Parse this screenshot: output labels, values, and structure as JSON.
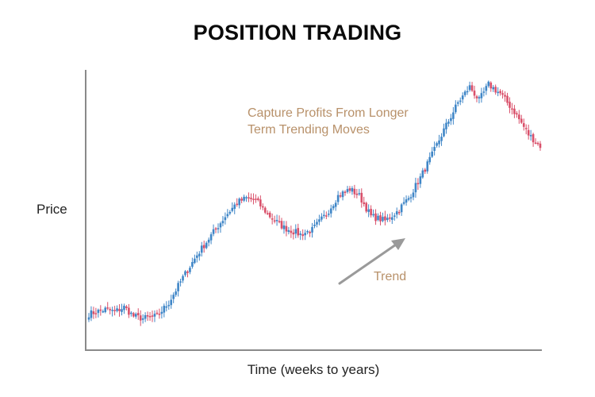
{
  "chart_data": {
    "type": "candlestick",
    "title": "POSITION TRADING",
    "ylabel": "Price",
    "xlabel": "Time (weeks to years)",
    "annotations": {
      "note_line1": "Capture Profits From Longer",
      "note_line2": "Term Trending Moves",
      "trend_label": "Trend"
    },
    "anchors": [
      [
        0,
        10
      ],
      [
        7,
        14
      ],
      [
        11,
        12
      ],
      [
        15,
        16
      ],
      [
        19,
        8
      ],
      [
        23,
        6
      ],
      [
        29,
        8
      ],
      [
        34,
        20
      ],
      [
        40,
        42
      ],
      [
        46,
        62
      ],
      [
        53,
        82
      ],
      [
        58,
        96
      ],
      [
        63,
        108
      ],
      [
        67,
        112
      ],
      [
        71,
        110
      ],
      [
        77,
        96
      ],
      [
        83,
        86
      ],
      [
        90,
        80
      ],
      [
        95,
        84
      ],
      [
        101,
        98
      ],
      [
        106,
        114
      ],
      [
        111,
        120
      ],
      [
        115,
        114
      ],
      [
        120,
        96
      ],
      [
        126,
        92
      ],
      [
        131,
        100
      ],
      [
        136,
        112
      ],
      [
        141,
        130
      ],
      [
        146,
        150
      ],
      [
        151,
        172
      ],
      [
        157,
        196
      ],
      [
        162,
        210
      ],
      [
        166,
        198
      ],
      [
        170,
        212
      ],
      [
        175,
        204
      ],
      [
        181,
        188
      ],
      [
        187,
        168
      ],
      [
        192,
        158
      ]
    ],
    "candle_count": 193,
    "ylim": [
      -10,
      220
    ],
    "colors": {
      "up": "#3f86c7",
      "down": "#d9506a",
      "axis": "#8a8a8a",
      "arrow": "#9a9a9a"
    }
  }
}
